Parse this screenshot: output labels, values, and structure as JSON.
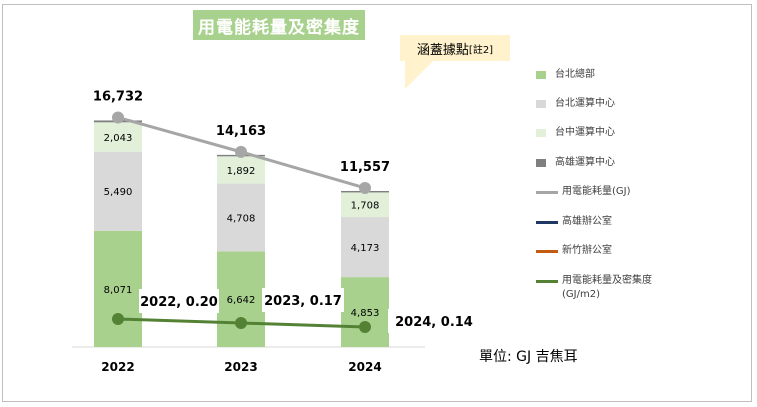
{
  "title": "用電能耗量及密集度",
  "callout": {
    "main": "涵蓋據點",
    "note": "[註2]"
  },
  "unit": "單位: GJ 吉焦耳",
  "legend": [
    {
      "label": "台北總部",
      "kind": "box",
      "color": "#a9d18e"
    },
    {
      "label": "台北運算中心",
      "kind": "box",
      "color": "#d9d9d9"
    },
    {
      "label": "台中運算中心",
      "kind": "box",
      "color": "#e2f0d9"
    },
    {
      "label": "高雄運算中心",
      "kind": "box",
      "color": "#7f7f7f"
    },
    {
      "label": "用電能耗量(GJ)",
      "kind": "line",
      "color": "#a6a6a6"
    },
    {
      "label": "高雄辦公室",
      "kind": "line",
      "color": "#1f3864"
    },
    {
      "label": "新竹辦公室",
      "kind": "line",
      "color": "#c55a11"
    },
    {
      "label": "用電能耗量及密集度(GJ/m2)",
      "kind": "line",
      "color": "#548235"
    }
  ],
  "chart_data": {
    "type": "bar",
    "stacked": true,
    "categories": [
      "2022",
      "2023",
      "2024"
    ],
    "series": [
      {
        "name": "台北總部",
        "values": [
          8071,
          6642,
          4853
        ],
        "labels": [
          "8,071",
          "6,642",
          "4,853"
        ],
        "color": "#a9d18e"
      },
      {
        "name": "台北運算中心",
        "values": [
          5490,
          4708,
          4173
        ],
        "labels": [
          "5,490",
          "4,708",
          "4,173"
        ],
        "color": "#d9d9d9"
      },
      {
        "name": "台中運算中心",
        "values": [
          2043,
          1892,
          1708
        ],
        "labels": [
          "2,043",
          "1,892",
          "1,708"
        ],
        "color": "#e2f0d9"
      },
      {
        "name": "高雄運算中心",
        "values": [
          128,
          100,
          100
        ],
        "color": "#7f7f7f"
      }
    ],
    "totals": {
      "name": "用電能耗量(GJ)",
      "values": [
        16732,
        14163,
        11557
      ],
      "labels": [
        "16,732",
        "14,163",
        "11,557"
      ],
      "color": "#a6a6a6"
    },
    "intensity": {
      "name": "用電能耗量及密集度(GJ/m2)",
      "values": [
        0.2,
        0.17,
        0.14
      ],
      "labels": [
        "2022, 0.20",
        "2023, 0.17",
        "2024, 0.14"
      ],
      "color": "#548235"
    },
    "ylim": [
      0,
      17500
    ],
    "grid": false,
    "legend_position": "right"
  }
}
